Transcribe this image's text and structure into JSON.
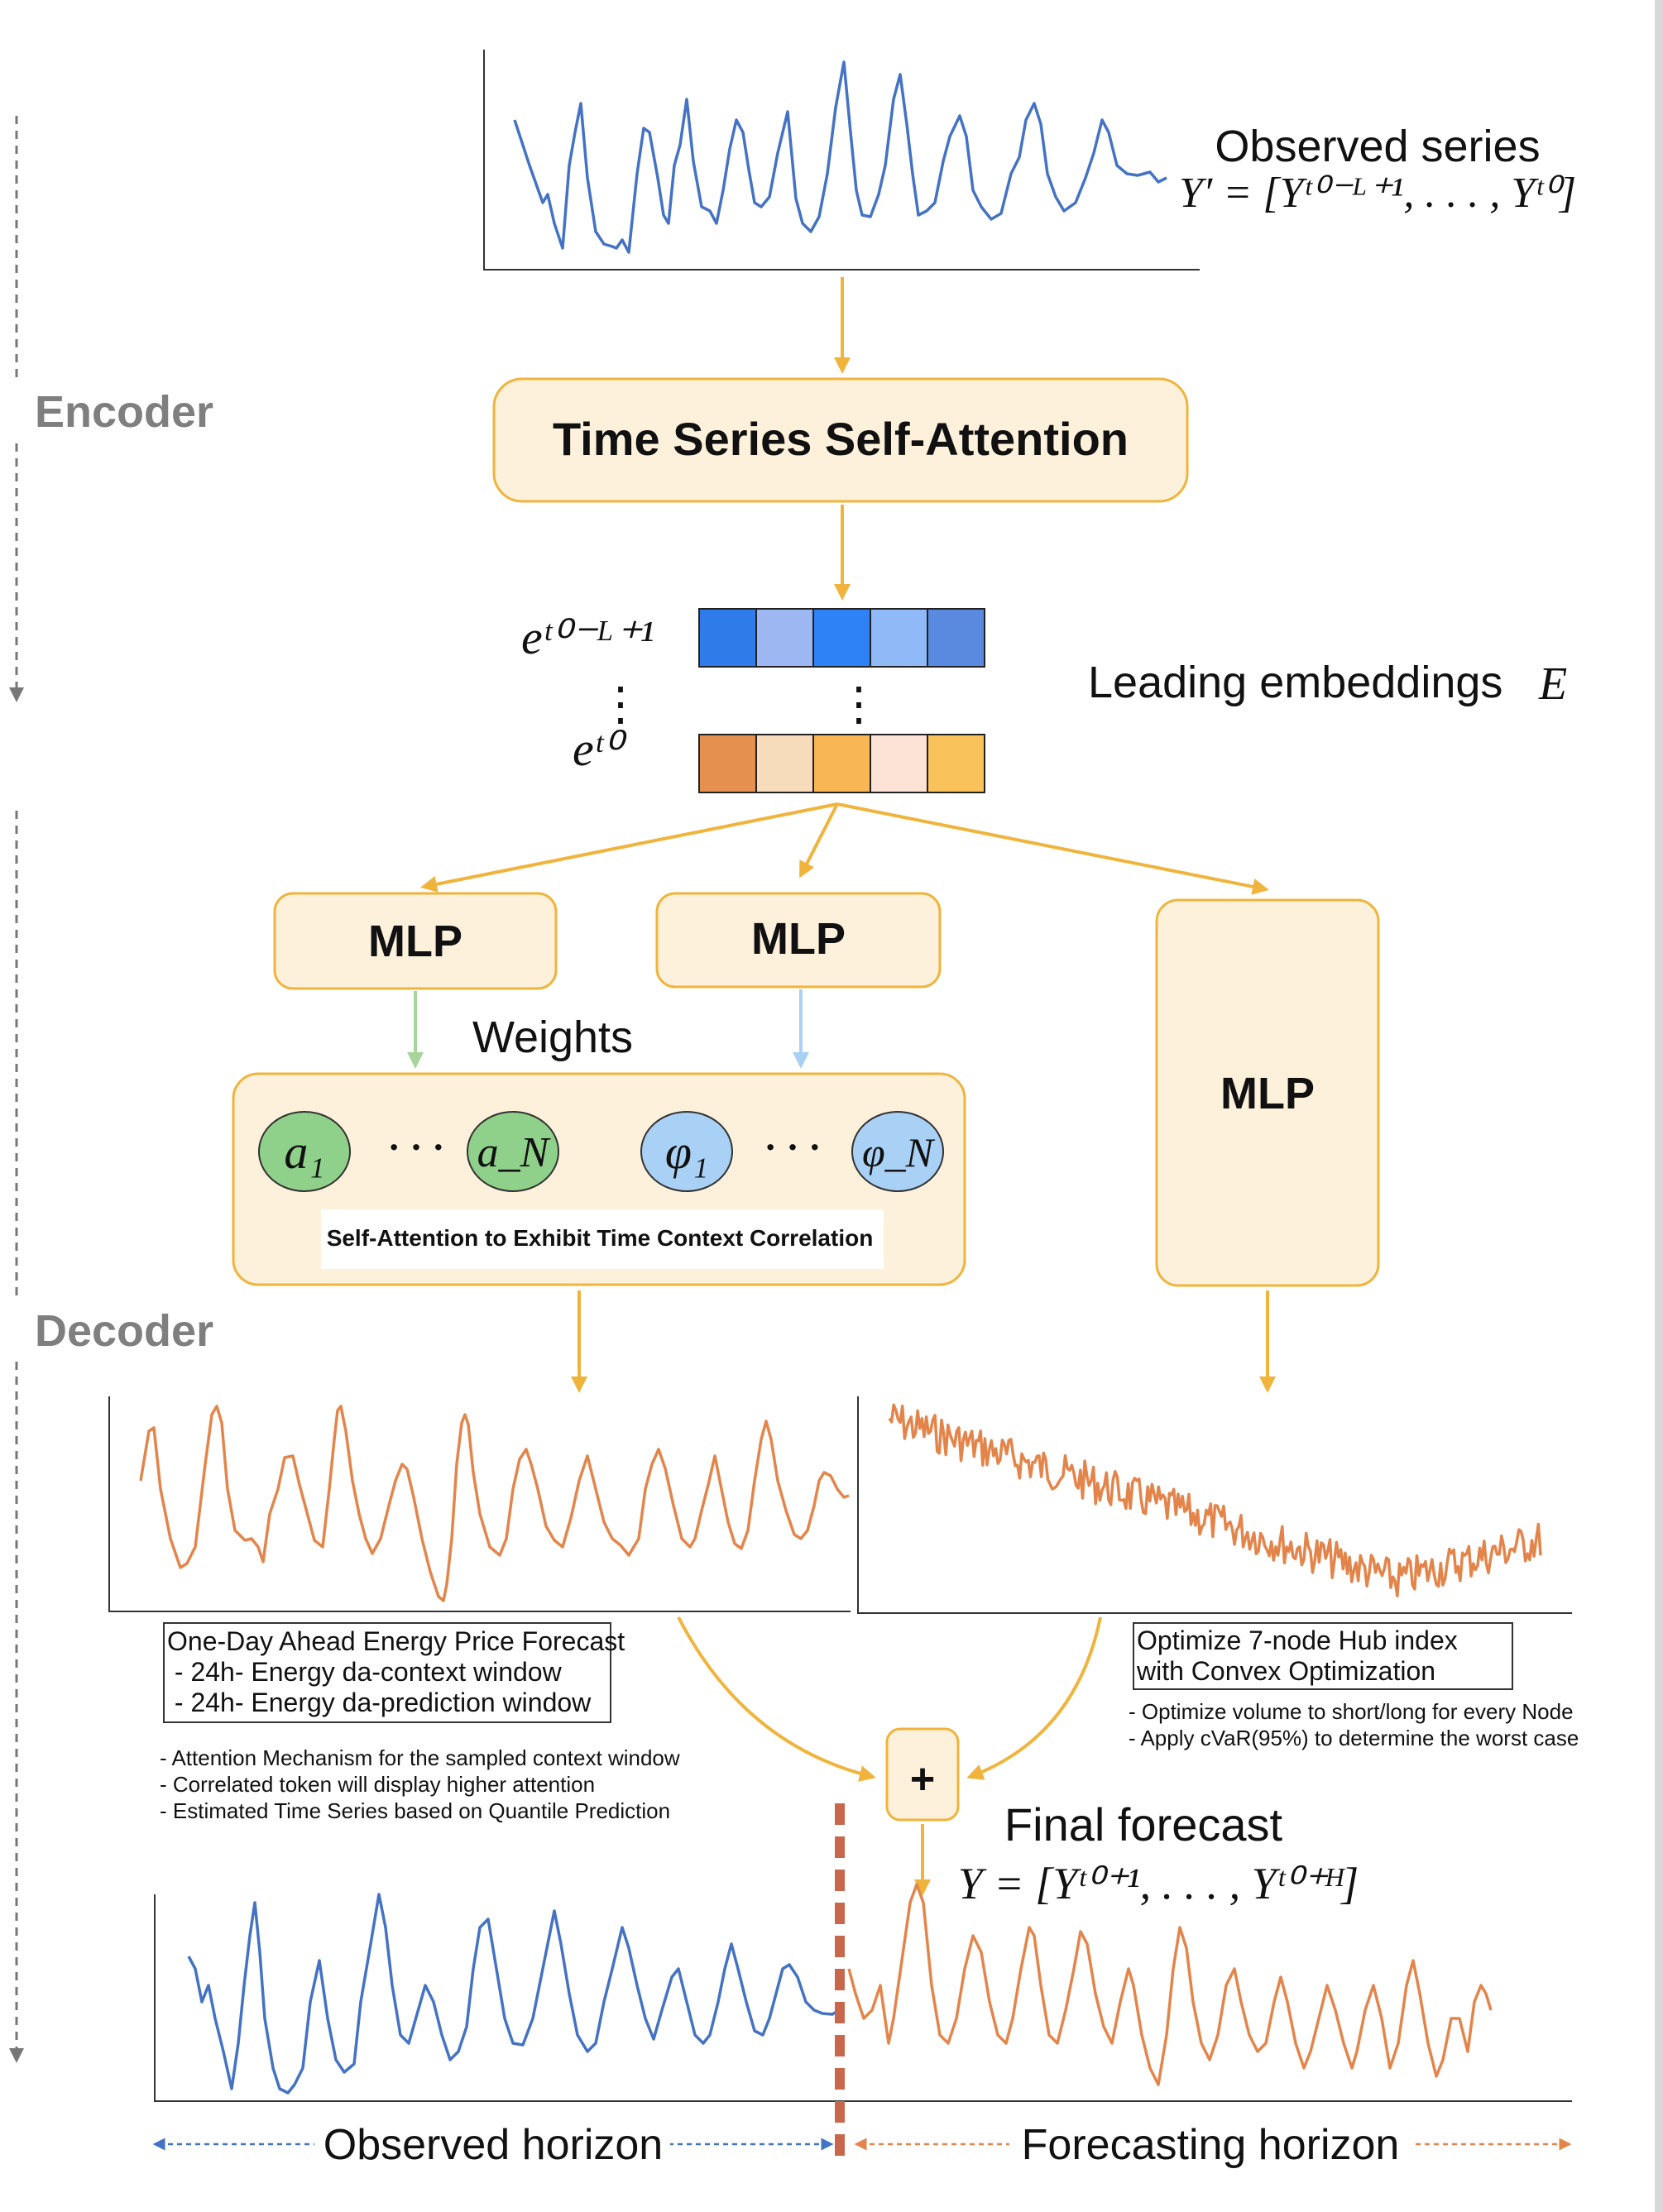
{
  "sections": {
    "encoder": "Encoder",
    "decoder": "Decoder"
  },
  "observed": {
    "title": "Observed series",
    "formula": "Y′ = [Yᵗ⁰⁻ᴸ⁺¹, . . . , Yᵗ⁰]"
  },
  "self_attention_box": "Time Series Self-Attention",
  "embeddings": {
    "top_label": "eᵗ⁰⁻ᴸ⁺¹",
    "dots": "⋮",
    "bottom_label": "eᵗ⁰",
    "title": "Leading embeddings",
    "symbol": "E",
    "top_colors": [
      "#2f7be9",
      "#9cb7f2",
      "#2f82f5",
      "#8fbaf7",
      "#5a8ae0"
    ],
    "bottom_colors": [
      "#e6904f",
      "#f6dcba",
      "#f8b754",
      "#fde3d5",
      "#f9c25a"
    ]
  },
  "mlp": {
    "left": "MLP",
    "middle": "MLP",
    "right": "MLP"
  },
  "weights_label": "Weights",
  "attention_box": {
    "a1": "a₁",
    "aN": "a_N",
    "phi1": "φ₁",
    "phiN": "φ_N",
    "ellipsis": "· · ·",
    "caption": "Self-Attention to Exhibit Time Context Correlation",
    "green": "#8fd18a",
    "blue": "#a9d0f5"
  },
  "left_note": {
    "lines": [
      "One-Day Ahead Energy Price Forecast",
      " - 24h- Energy da-context window",
      " - 24h- Energy da-prediction window"
    ],
    "bullets": [
      "- Attention Mechanism for the sampled context window",
      "- Correlated token will display higher attention",
      "- Estimated Time Series based on Quantile Prediction"
    ]
  },
  "right_note": {
    "lines": [
      "Optimize 7-node Hub index",
      "with Convex Optimization"
    ],
    "bullets": [
      "- Optimize volume to short/long for every Node",
      "- Apply cVaR(95%) to determine the worst case"
    ]
  },
  "combine_symbol": "+",
  "final": {
    "title": "Final forecast",
    "formula": "Y = [Yᵗ⁰⁺¹, . . . , Yᵗ⁰⁺ᴴ]"
  },
  "horizons": {
    "observed": "Observed horizon",
    "forecasting": "Forecasting horizon"
  },
  "colors": {
    "accent_orange": "#f0b43c",
    "box_fill": "#fdf1dc",
    "series_blue": "#4472c4",
    "series_orange": "#e3854b"
  }
}
